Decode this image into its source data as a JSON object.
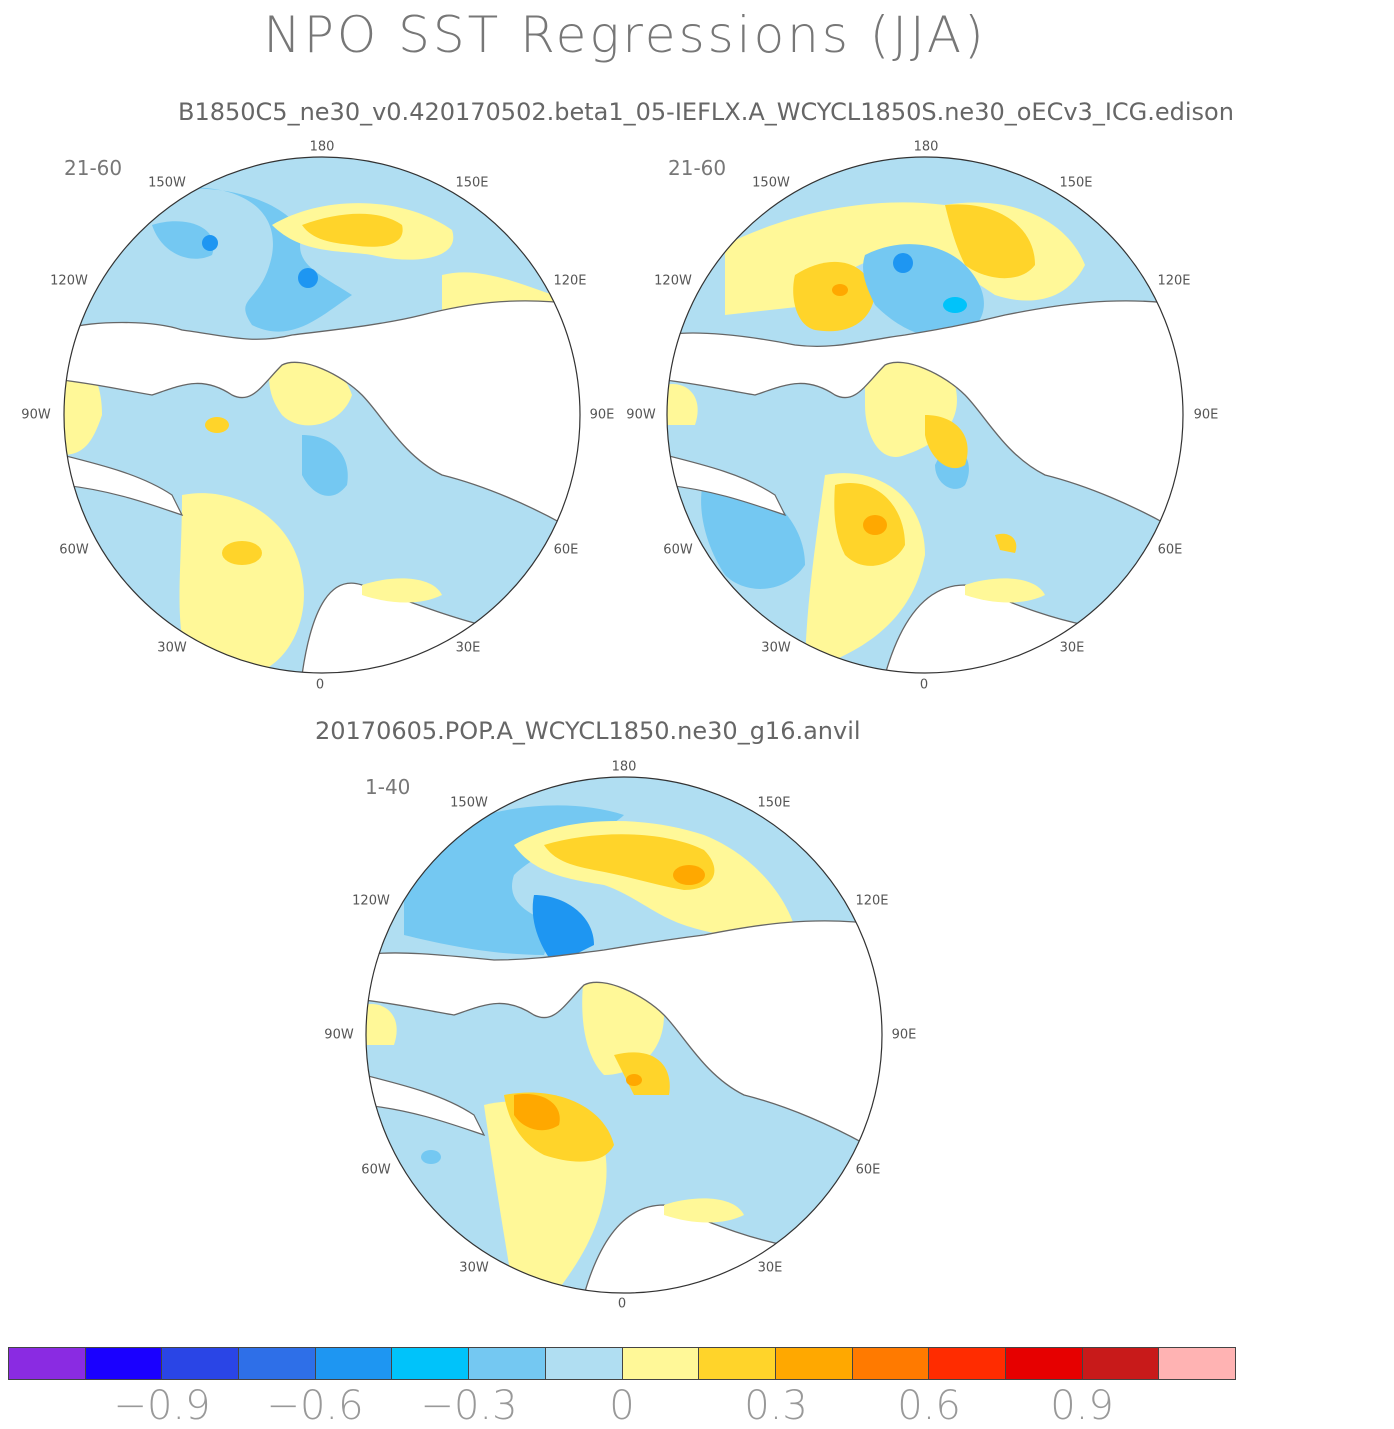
{
  "title": "NPO SST Regressions (JJA)",
  "subtitles": {
    "top": "B1850C5_ne30_v0.420170502.beta1_05-IEFLX.A_WCYCL1850S.ne30_oECv3_ICG.edison",
    "bottom": "20170605.POP.A_WCYCL1850.ne30_g16.anvil"
  },
  "longitude_labels": {
    "top": "180",
    "upper_left": "150W",
    "upper_right": "150E",
    "mid_upper_left": "120W",
    "mid_upper_right": "120E",
    "left": "90W",
    "right": "90E",
    "mid_lower_left": "60W",
    "mid_lower_right": "60E",
    "lower_left": "30W",
    "lower_right": "30E",
    "bottom": "0"
  },
  "panels": [
    {
      "id": "panel-top-left",
      "years": "21-60"
    },
    {
      "id": "panel-top-right",
      "years": "21-60"
    },
    {
      "id": "panel-bottom",
      "years": "1-40"
    }
  ],
  "colorbar": {
    "colors": [
      "#8a2be2",
      "#1a00ff",
      "#2a45e6",
      "#2e6fe8",
      "#1e96f2",
      "#00c3fa",
      "#74c8f2",
      "#b0def2",
      "#fff898",
      "#ffd42a",
      "#ffa800",
      "#ff7a00",
      "#ff2c00",
      "#e60000",
      "#c81a1a",
      "#ffb3b3"
    ],
    "labels": [
      "−0.9",
      "−0.6",
      "−0.3",
      "0",
      "0.3",
      "0.6",
      "0.9"
    ]
  },
  "field_colors": {
    "ocean_neg_weak": "#b0def2",
    "ocean_neg_mid": "#74c8f2",
    "ocean_neg_strong": "#1e96f2",
    "ocean_pos_weak": "#fff898",
    "ocean_pos_mid": "#ffd42a",
    "ocean_pos_strong": "#ffa800",
    "ocean_pos_max": "#ff7a00",
    "land": "#ffffff",
    "coast": "#666666"
  }
}
